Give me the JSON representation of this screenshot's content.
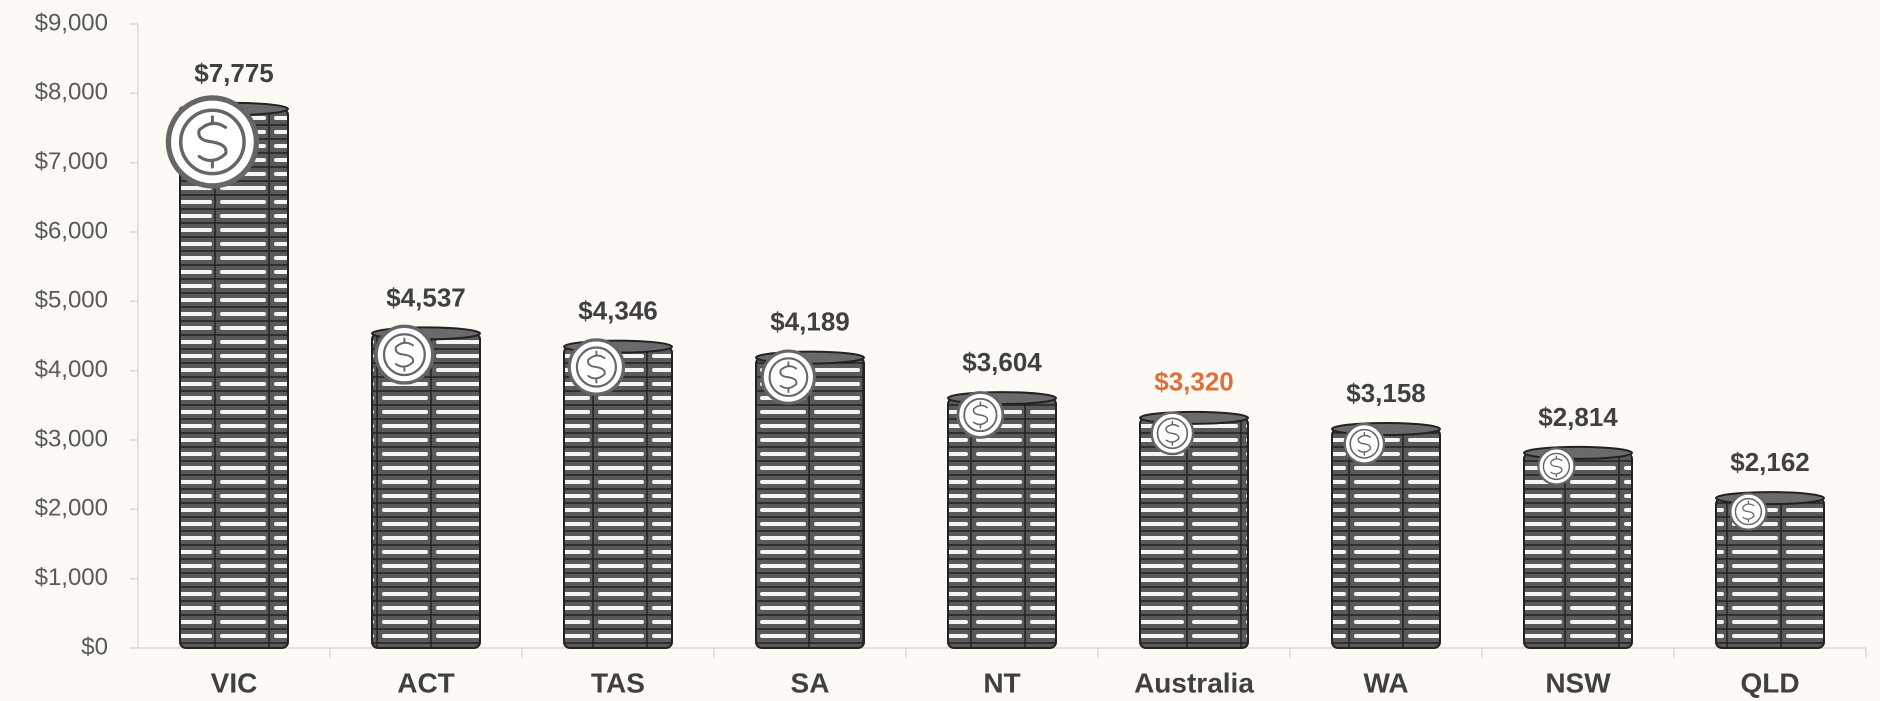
{
  "chart_data": {
    "type": "bar",
    "categories": [
      "VIC",
      "ACT",
      "TAS",
      "SA",
      "NT",
      "Australia",
      "WA",
      "NSW",
      "QLD"
    ],
    "values": [
      7775,
      4537,
      4346,
      4189,
      3604,
      3320,
      3158,
      2814,
      2162
    ],
    "value_labels": [
      "$7,775",
      "$4,537",
      "$4,346",
      "$4,189",
      "$3,604",
      "$3,320",
      "$3,158",
      "$2,814",
      "$2,162"
    ],
    "value_label_colors": [
      "#404040",
      "#404040",
      "#404040",
      "#404040",
      "#404040",
      "#e0703a",
      "#404040",
      "#404040",
      "#404040"
    ],
    "color": "#5a5a5a",
    "ylim": [
      0,
      9000
    ],
    "yticks": [
      {
        "value": 0,
        "label": "$0"
      },
      {
        "value": 1000,
        "label": "$1,000"
      },
      {
        "value": 2000,
        "label": "$2,000"
      },
      {
        "value": 3000,
        "label": "$3,000"
      },
      {
        "value": 4000,
        "label": "$4,000"
      },
      {
        "value": 5000,
        "label": "$5,000"
      },
      {
        "value": 6000,
        "label": "$6,000"
      },
      {
        "value": 7000,
        "label": "$7,000"
      },
      {
        "value": 8000,
        "label": "$8,000"
      },
      {
        "value": 9000,
        "label": "$9,000"
      }
    ],
    "grid": false
  }
}
